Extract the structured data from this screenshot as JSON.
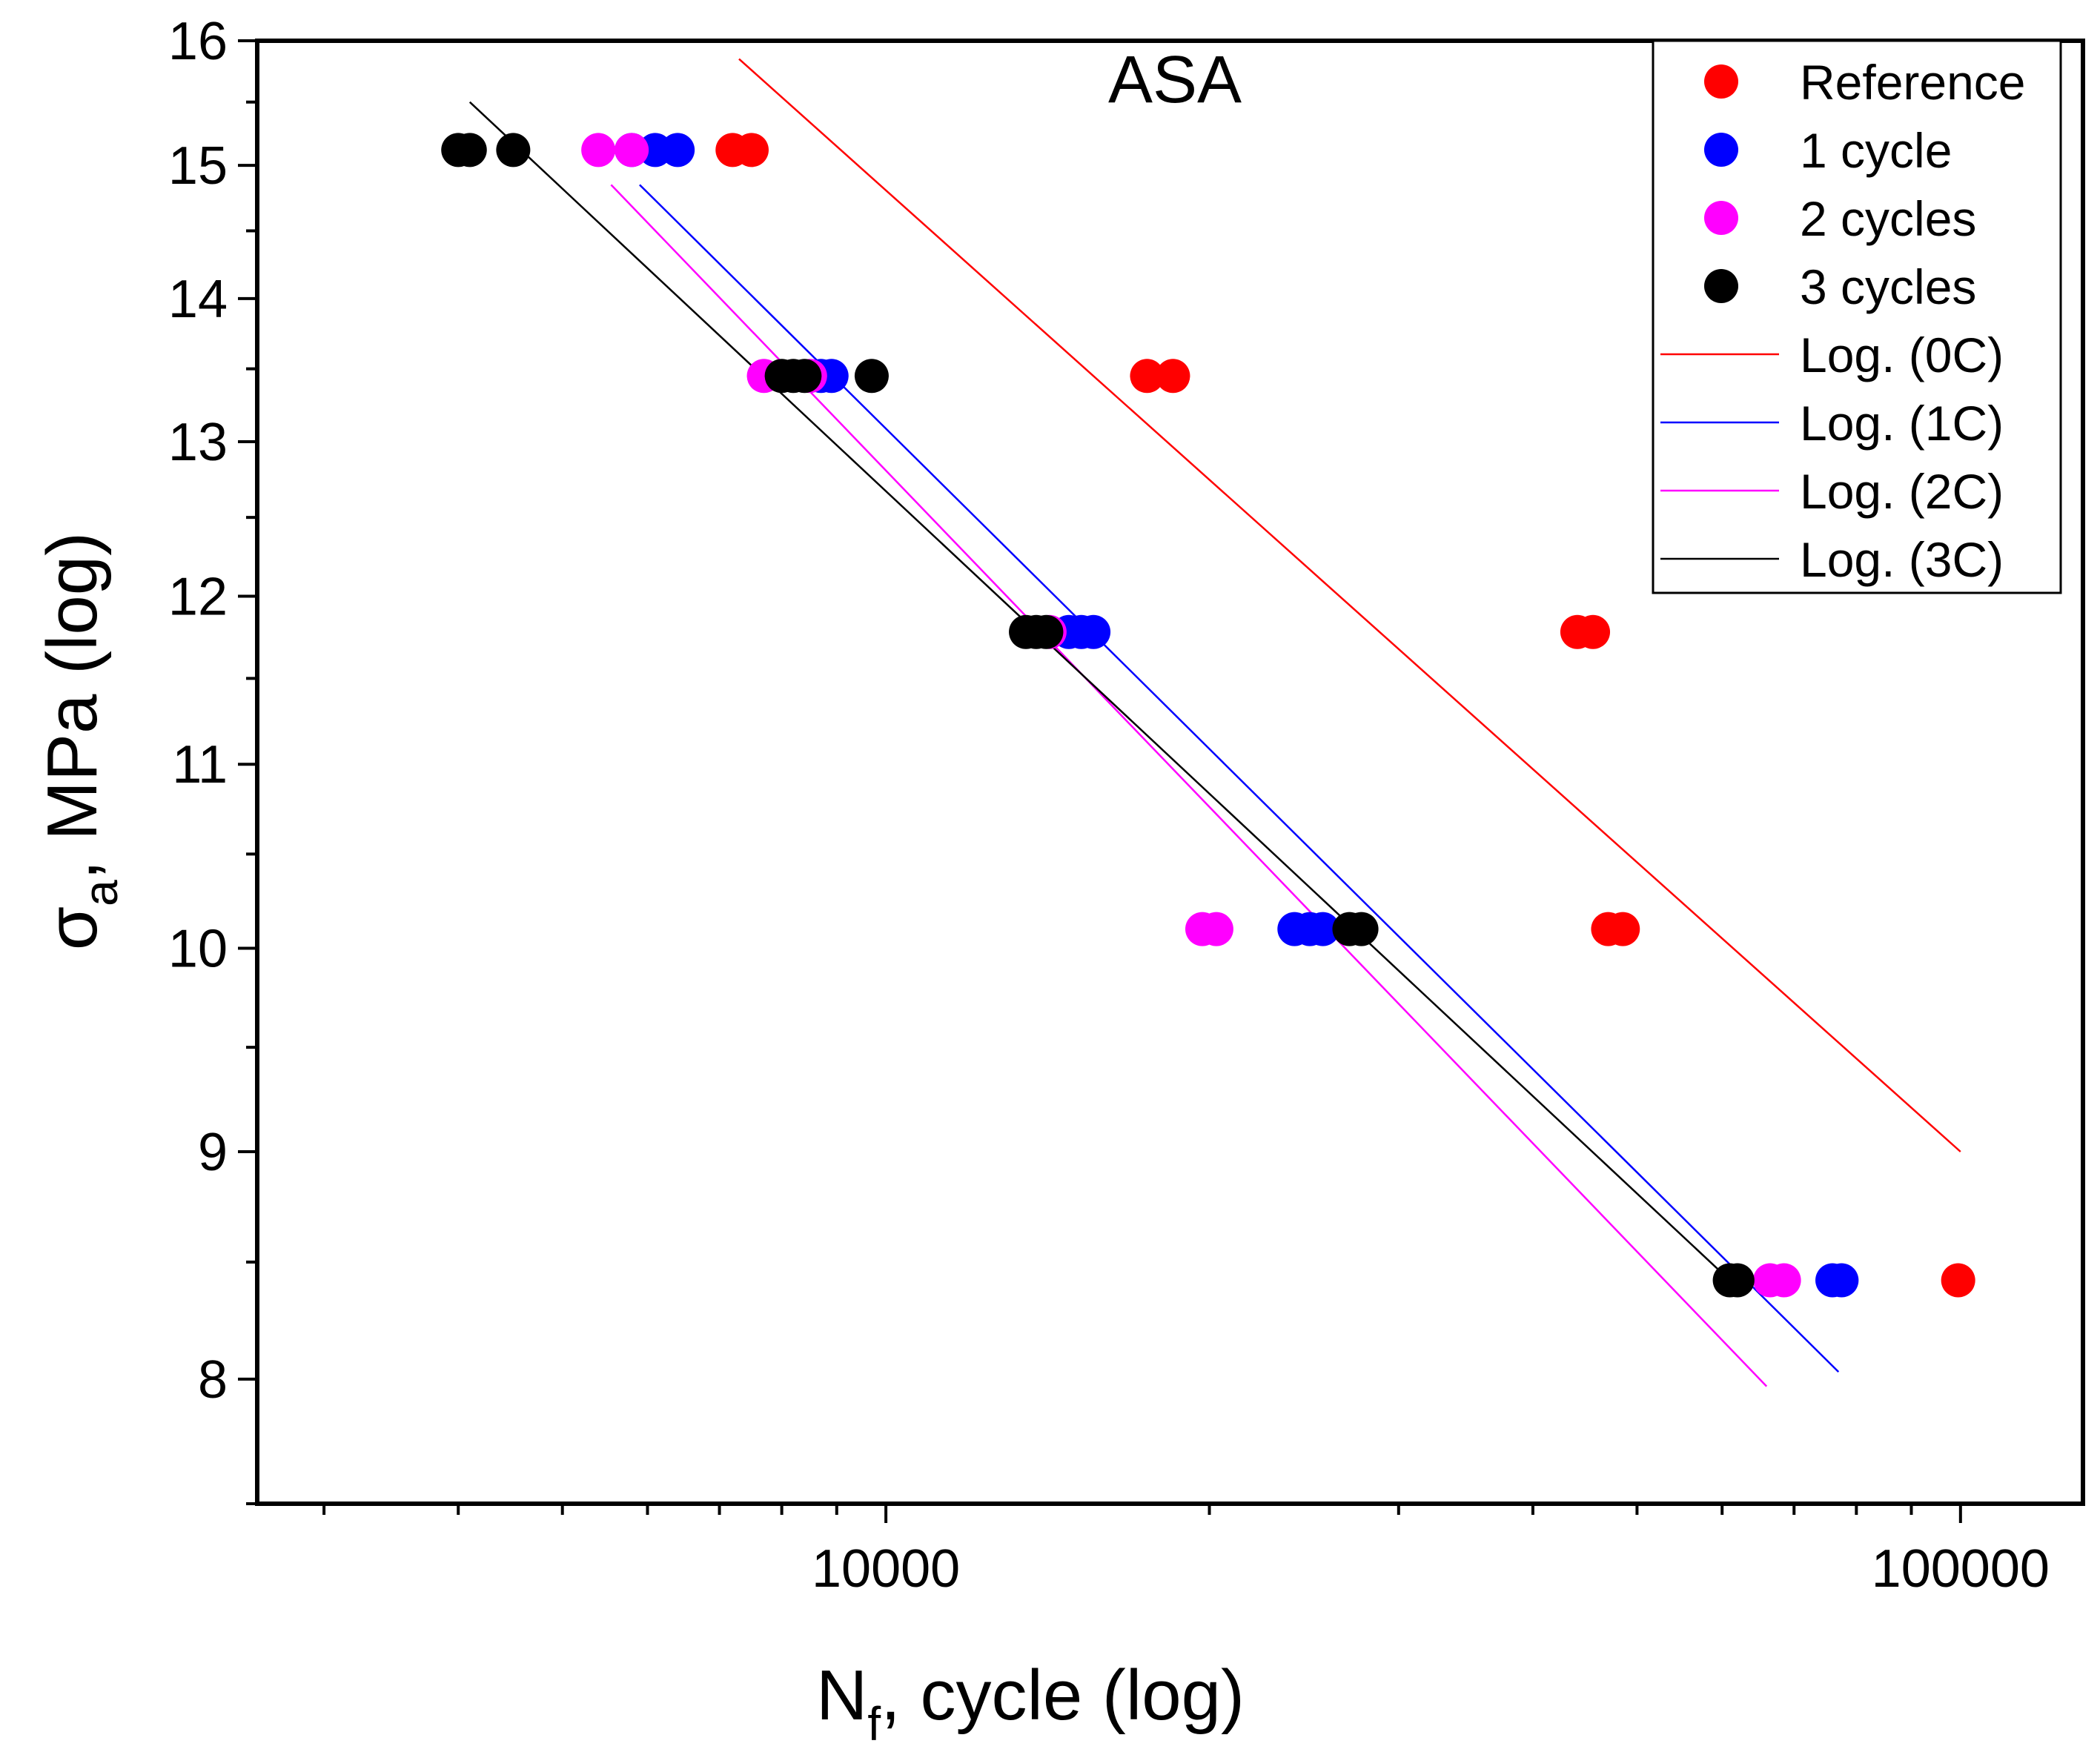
{
  "chart_data": {
    "type": "scatter",
    "title": "ASA",
    "xlabel": "N",
    "xlabel_subscript": "f",
    "xlabel_suffix": ", cycle (log)",
    "ylabel": "σ",
    "ylabel_subscript": "a",
    "ylabel_suffix": ", MPa (log)",
    "x_scale": "log",
    "y_scale": "log",
    "xlim": [
      2600,
      130000
    ],
    "ylim": [
      7.5,
      16
    ],
    "x_ticks": [
      10000,
      100000
    ],
    "x_tick_labels": [
      "10000",
      "100000"
    ],
    "y_ticks": [
      8,
      9,
      10,
      11,
      12,
      13,
      14,
      15,
      16
    ],
    "y_tick_labels": [
      "8",
      "9",
      "10",
      "11",
      "12",
      "13",
      "14",
      "15",
      "16"
    ],
    "legend_position": "top-right",
    "series": [
      {
        "name": "Reference",
        "kind": "points",
        "color": "#ff0000",
        "points": [
          {
            "x": 7200,
            "y": 15.12
          },
          {
            "x": 7500,
            "y": 15.12
          },
          {
            "x": 17500,
            "y": 13.45
          },
          {
            "x": 18500,
            "y": 13.45
          },
          {
            "x": 44000,
            "y": 11.78
          },
          {
            "x": 45500,
            "y": 11.78
          },
          {
            "x": 47000,
            "y": 10.1
          },
          {
            "x": 48500,
            "y": 10.1
          },
          {
            "x": 99500,
            "y": 8.42
          }
        ]
      },
      {
        "name": "1 cycle",
        "kind": "points",
        "color": "#0000ff",
        "points": [
          {
            "x": 5800,
            "y": 15.12
          },
          {
            "x": 6100,
            "y": 15.12
          },
          {
            "x": 6400,
            "y": 15.12
          },
          {
            "x": 8700,
            "y": 13.45
          },
          {
            "x": 8900,
            "y": 13.45
          },
          {
            "x": 14800,
            "y": 11.78
          },
          {
            "x": 15200,
            "y": 11.78
          },
          {
            "x": 15600,
            "y": 11.78
          },
          {
            "x": 24000,
            "y": 10.1
          },
          {
            "x": 24800,
            "y": 10.1
          },
          {
            "x": 25500,
            "y": 10.1
          },
          {
            "x": 76000,
            "y": 8.42
          },
          {
            "x": 77500,
            "y": 8.42
          }
        ]
      },
      {
        "name": "2 cycles",
        "kind": "points",
        "color": "#ff00ff",
        "points": [
          {
            "x": 5400,
            "y": 15.12
          },
          {
            "x": 5800,
            "y": 15.12
          },
          {
            "x": 7700,
            "y": 13.45
          },
          {
            "x": 8500,
            "y": 13.45
          },
          {
            "x": 14200,
            "y": 11.78
          },
          {
            "x": 19700,
            "y": 10.1
          },
          {
            "x": 20300,
            "y": 10.1
          },
          {
            "x": 66500,
            "y": 8.42
          },
          {
            "x": 68500,
            "y": 8.42
          }
        ]
      },
      {
        "name": "3 cycles",
        "kind": "points",
        "color": "#000000",
        "points": [
          {
            "x": 4000,
            "y": 15.12
          },
          {
            "x": 4100,
            "y": 15.12
          },
          {
            "x": 4500,
            "y": 15.12
          },
          {
            "x": 8000,
            "y": 13.45
          },
          {
            "x": 8200,
            "y": 13.45
          },
          {
            "x": 8400,
            "y": 13.45
          },
          {
            "x": 9700,
            "y": 13.45
          },
          {
            "x": 13500,
            "y": 11.78
          },
          {
            "x": 13800,
            "y": 11.78
          },
          {
            "x": 14100,
            "y": 11.78
          },
          {
            "x": 27000,
            "y": 10.1
          },
          {
            "x": 27700,
            "y": 10.1
          },
          {
            "x": 61000,
            "y": 8.42
          },
          {
            "x": 62000,
            "y": 8.42
          }
        ]
      },
      {
        "name": "Log. (0C)",
        "kind": "line",
        "color": "#ff0000",
        "points": [
          {
            "x": 7300,
            "y": 15.85
          },
          {
            "x": 100000,
            "y": 9.0
          }
        ]
      },
      {
        "name": "Log. (1C)",
        "kind": "line",
        "color": "#0000ff",
        "points": [
          {
            "x": 5900,
            "y": 14.85
          },
          {
            "x": 77000,
            "y": 8.03
          }
        ]
      },
      {
        "name": "Log. (2C)",
        "kind": "line",
        "color": "#ff00ff",
        "points": [
          {
            "x": 5550,
            "y": 14.85
          },
          {
            "x": 66000,
            "y": 7.97
          }
        ]
      },
      {
        "name": "Log. (3C)",
        "kind": "line",
        "color": "#000000",
        "points": [
          {
            "x": 4100,
            "y": 15.5
          },
          {
            "x": 61000,
            "y": 8.42
          }
        ]
      }
    ]
  }
}
